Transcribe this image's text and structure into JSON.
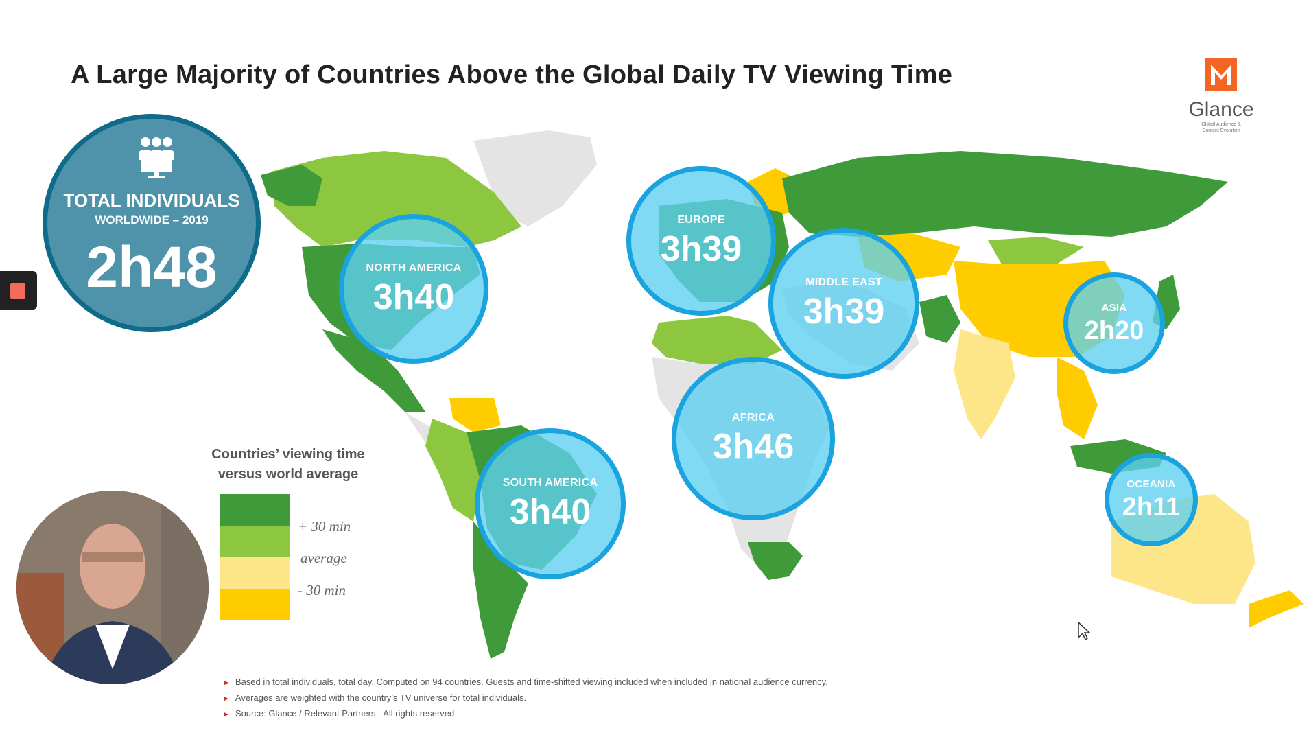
{
  "title": "A Large Majority of Countries Above the Global Daily TV Viewing Time",
  "logo": {
    "mark": "M",
    "name": "Glance",
    "tagline_line1": "Global Audience &",
    "tagline_line2": "Content Evolution",
    "color": "#f26522"
  },
  "total": {
    "label": "TOTAL INDIVIDUALS",
    "sublabel": "WORLDWIDE – 2019",
    "value": "2h48",
    "icon": "audience-icon"
  },
  "regions": [
    {
      "name": "NORTH AMERICA",
      "value": "3h40"
    },
    {
      "name": "EUROPE",
      "value": "3h39"
    },
    {
      "name": "MIDDLE EAST",
      "value": "3h39"
    },
    {
      "name": "ASIA",
      "value": "2h20"
    },
    {
      "name": "AFRICA",
      "value": "3h46"
    },
    {
      "name": "SOUTH AMERICA",
      "value": "3h40"
    },
    {
      "name": "OCEANIA",
      "value": "2h11"
    }
  ],
  "legend": {
    "title": "Countries’ viewing time versus world average",
    "items": [
      {
        "label": "+ 30 min",
        "color": "#3f9b3a"
      },
      {
        "label": "average",
        "color": "#8dc63f"
      },
      {
        "label": "- 30 min",
        "color": "#fde68a"
      },
      {
        "label": "",
        "color": "#ffcc00"
      }
    ]
  },
  "notes": [
    "Based in total individuals, total day. Computed on 94 countries. Guests and time-shifted viewing included when included in national audience currency.",
    "Averages are weighted with the country’s TV universe for total individuals.",
    "Source: Glance / Relevant Partners - All rights reserved"
  ],
  "colors": {
    "above": "#3f9b3a",
    "average": "#8dc63f",
    "below_light": "#fde68a",
    "below": "#ffcc00",
    "no_data": "#e4e4e4",
    "bubble_fill": "#5ccff1",
    "bubble_border": "#1aa3df",
    "total_fill": "#4e93aa",
    "total_border": "#0e6b89"
  }
}
